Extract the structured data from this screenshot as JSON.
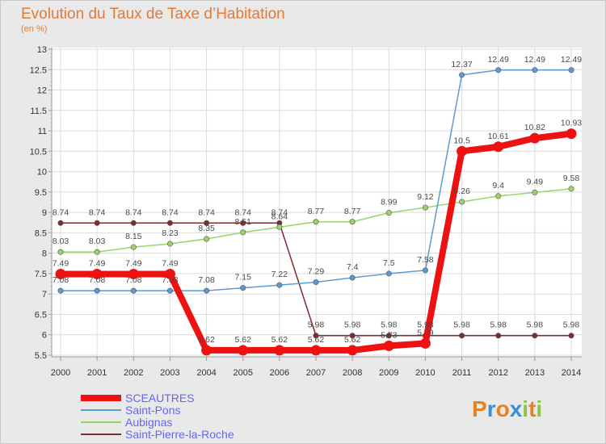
{
  "chart_data": {
    "type": "line",
    "title": "Evolution du Taux de Taxe d’Habitation",
    "subtitle": "(en %)",
    "x": [
      "2000",
      "2001",
      "2002",
      "2003",
      "2004",
      "2005",
      "2006",
      "2007",
      "2008",
      "2009",
      "2010",
      "2011",
      "2012",
      "2013",
      "2014"
    ],
    "yticks": [
      "5.5",
      "6",
      "6.5",
      "7",
      "7.5",
      "8",
      "8.5",
      "9",
      "9.5",
      "10",
      "10.5",
      "11",
      "11.5",
      "12",
      "12.5",
      "13"
    ],
    "ylim": [
      5.5,
      13
    ],
    "grid": true,
    "legend_position": "bottom-left",
    "series": [
      {
        "name": "SCEAUTRES",
        "color": "#ee1111",
        "values": [
          7.49,
          7.49,
          7.49,
          7.49,
          5.62,
          5.62,
          5.62,
          5.62,
          5.62,
          5.73,
          5.79,
          10.5,
          10.61,
          10.82,
          10.93
        ],
        "labels": [
          "7.49",
          "7.49",
          "7.49",
          "7.49",
          "5.62",
          "5.62",
          "5.62",
          "5.62",
          "5.62",
          "5.73",
          "5.79",
          "10.5",
          "10.61",
          "10.82",
          "10.93"
        ]
      },
      {
        "name": "Saint-Pons",
        "color": "#5b9bd5",
        "values": [
          7.08,
          7.08,
          7.08,
          7.08,
          7.08,
          7.15,
          7.22,
          7.29,
          7.4,
          7.5,
          7.58,
          12.37,
          12.49,
          12.49,
          12.49
        ],
        "labels": [
          "7.08",
          "7.08",
          "7.08",
          "7.08",
          "7.08",
          "7.15",
          "7.22",
          "7.29",
          "7.4",
          "7.5",
          "7.58",
          "12.37",
          "12.49",
          "12.49",
          "12.49"
        ]
      },
      {
        "name": "Aubignas",
        "color": "#99d36b",
        "values": [
          8.03,
          8.03,
          8.15,
          8.23,
          8.35,
          8.51,
          8.64,
          8.77,
          8.77,
          8.99,
          9.12,
          9.26,
          9.4,
          9.49,
          9.58
        ],
        "labels": [
          "8.03",
          "8.03",
          "8.15",
          "8.23",
          "8.35",
          "8.51",
          "8.64",
          "8.77",
          "8.77",
          "8.99",
          "9.12",
          "9.26",
          "9.4",
          "9.49",
          "9.58"
        ]
      },
      {
        "name": "Saint-Pierre-la-Roche",
        "color": "#7a2e2e",
        "values": [
          8.74,
          8.74,
          8.74,
          8.74,
          8.74,
          8.74,
          8.74,
          5.98,
          5.98,
          5.98,
          5.98,
          5.98,
          5.98,
          5.98,
          5.98
        ],
        "labels": [
          "8.74",
          "8.74",
          "8.74",
          "8.74",
          "8.74",
          "8.74",
          "8.74",
          "5.98",
          "5.98",
          "5.98",
          "5.98",
          "5.98",
          "5.98",
          "5.98",
          "5.98"
        ]
      }
    ]
  },
  "brand": {
    "letters": [
      "P",
      "r",
      "o",
      "x",
      "i",
      "t",
      "i"
    ],
    "colors": [
      "#e8821e",
      "#3a8fd8",
      "#e8821e",
      "#3a8fd8",
      "#8cc63f",
      "#e8821e",
      "#8cc63f"
    ]
  }
}
